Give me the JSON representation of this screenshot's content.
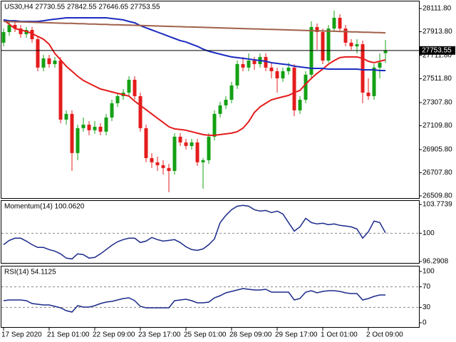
{
  "chart_data": [
    {
      "type": "candlestick",
      "title": "US30,H4  27730.55 27842.55 27646.65 27753.55",
      "categories": [
        "17 Sep 2020",
        null,
        null,
        null,
        null,
        null,
        null,
        null,
        "21 Sep 01:00",
        null,
        null,
        null,
        null,
        null,
        null,
        null,
        "22 Sep 09:00",
        null,
        null,
        null,
        null,
        null,
        null,
        null,
        "23 Sep 17:00",
        null,
        null,
        null,
        null,
        null,
        null,
        null,
        "25 Sep 01:00",
        null,
        null,
        null,
        null,
        null,
        null,
        null,
        "28 Sep 09:00",
        null,
        null,
        null,
        null,
        null,
        null,
        null,
        "29 Sep 17:00",
        null,
        null,
        null,
        null,
        null,
        null,
        null,
        "1 Oct 01:00",
        null,
        null,
        null,
        null,
        null,
        null,
        null,
        "2 Oct 09:00",
        null,
        null,
        null
      ],
      "open": [
        27820,
        27911,
        27972,
        27941,
        27893,
        27929,
        27850,
        27607,
        27686,
        27637,
        27667,
        27162,
        27211,
        26876,
        27089,
        27119,
        27071,
        27101,
        27059,
        27180,
        27302,
        27363,
        27393,
        27503,
        27363,
        27089,
        26833,
        26797,
        26772,
        26748,
        26723,
        27016,
        26967,
        26937,
        26967,
        26797,
        26815,
        27016,
        27211,
        27284,
        27332,
        27454,
        27637,
        27607,
        27667,
        27637,
        27698,
        27607,
        27576,
        27515,
        27576,
        27607,
        27241,
        27332,
        27546,
        27954,
        27911,
        27667,
        27941,
        28033,
        27941,
        27820,
        27789,
        27807,
        27393,
        27363,
        27607,
        27730.55
      ],
      "high": [
        27941,
        28002,
        28002,
        27972,
        27954,
        27954,
        27880,
        27716,
        27716,
        27698,
        27698,
        27241,
        27241,
        27119,
        27180,
        27150,
        27150,
        27131,
        27211,
        27332,
        27393,
        27424,
        27533,
        27533,
        27393,
        27119,
        26876,
        26845,
        26815,
        26784,
        27046,
        27046,
        26998,
        26998,
        26998,
        26833,
        27046,
        27241,
        27314,
        27363,
        27485,
        27667,
        27698,
        27728,
        27698,
        27728,
        27728,
        27649,
        27607,
        27607,
        27649,
        27637,
        27363,
        27576,
        28002,
        27984,
        27941,
        27972,
        28094,
        28063,
        27972,
        27850,
        27850,
        27838,
        27515,
        27637,
        27728,
        27842.55
      ],
      "low": [
        27789,
        27880,
        27911,
        27862,
        27862,
        27820,
        27576,
        27576,
        27607,
        27607,
        27131,
        27119,
        26723,
        26815,
        27059,
        27028,
        27040,
        27028,
        27028,
        27150,
        27271,
        27332,
        27363,
        27332,
        27059,
        26797,
        26748,
        26723,
        26693,
        26541,
        26693,
        26937,
        26906,
        26906,
        26766,
        26571,
        26784,
        26985,
        27180,
        27253,
        27302,
        27424,
        27576,
        27576,
        27588,
        27607,
        27576,
        27515,
        27393,
        27485,
        27546,
        27192,
        27211,
        27302,
        27515,
        27759,
        27637,
        27649,
        27911,
        27911,
        27789,
        27759,
        27728,
        27302,
        27332,
        27332,
        27515,
        27646.65
      ],
      "close": [
        27911,
        27972,
        27941,
        27893,
        27929,
        27850,
        27607,
        27686,
        27637,
        27667,
        27162,
        27211,
        26876,
        27089,
        27119,
        27071,
        27101,
        27059,
        27180,
        27302,
        27363,
        27393,
        27503,
        27363,
        27089,
        26833,
        26797,
        26772,
        26748,
        26723,
        27016,
        26967,
        26937,
        26967,
        26797,
        26815,
        27016,
        27211,
        27284,
        27332,
        27454,
        27637,
        27607,
        27667,
        27637,
        27698,
        27607,
        27576,
        27515,
        27576,
        27607,
        27241,
        27332,
        27546,
        27954,
        27911,
        27667,
        27941,
        28033,
        27941,
        27820,
        27789,
        27807,
        27393,
        27363,
        27607,
        27649,
        27753.55
      ],
      "up_color": "#14a014",
      "down_color": "#e41c1c",
      "overlays": [
        {
          "color": "#e41c1c",
          "values": [
            28015,
            27978,
            27941,
            27929,
            27917,
            27899,
            27874,
            27850,
            27807,
            27728,
            27673,
            27619,
            27576,
            27533,
            27497,
            27472,
            27448,
            27424,
            27412,
            27399,
            27387,
            27375,
            27363,
            27320,
            27284,
            27247,
            27211,
            27174,
            27138,
            27101,
            27083,
            27077,
            27071,
            27059,
            27046,
            27034,
            27028,
            27028,
            27034,
            27040,
            27046,
            27059,
            27089,
            27144,
            27223,
            27271,
            27302,
            27332,
            27345,
            27357,
            27369,
            27393,
            27412,
            27466,
            27515,
            27558,
            27594,
            27637,
            27667,
            27692,
            27698,
            27698,
            27698,
            27686,
            27661,
            27649,
            27661,
            27673
          ]
        },
        {
          "color": "#1c2cc0",
          "values": [
            28015,
            28008,
            28008,
            28002,
            28002,
            28002,
            28002,
            28008,
            28015,
            28021,
            28027,
            28033,
            28033,
            28033,
            28033,
            28033,
            28033,
            28033,
            28033,
            28027,
            28021,
            28015,
            28002,
            27990,
            27966,
            27947,
            27929,
            27911,
            27893,
            27874,
            27856,
            27838,
            27826,
            27807,
            27789,
            27765,
            27747,
            27734,
            27722,
            27710,
            27698,
            27692,
            27686,
            27680,
            27673,
            27667,
            27661,
            27649,
            27643,
            27637,
            27631,
            27619,
            27613,
            27607,
            27600,
            27600,
            27600,
            27594,
            27594,
            27594,
            27594,
            27594,
            27594,
            27588,
            27588,
            27588,
            27582,
            27582
          ]
        },
        {
          "color": "#a0604a",
          "values": [
            28002,
            28001,
            27999,
            27998,
            27996,
            27995,
            27993,
            27992,
            27990,
            27989,
            27987,
            27986,
            27985,
            27983,
            27982,
            27980,
            27979,
            27977,
            27976,
            27974,
            27973,
            27971,
            27970,
            27969,
            27967,
            27966,
            27964,
            27963,
            27961,
            27960,
            27958,
            27957,
            27955,
            27954,
            27953,
            27951,
            27950,
            27948,
            27947,
            27945,
            27944,
            27942,
            27941,
            27939,
            27938,
            27937,
            27935,
            27934,
            27932,
            27931,
            27929,
            27928,
            27926,
            27925,
            27923,
            27922,
            27921,
            27919,
            27918,
            27916,
            27915,
            27913,
            27912,
            27910,
            27909,
            27907,
            27906,
            27904
          ]
        }
      ],
      "ylim": [
        26491,
        28173
      ],
      "yticks": [
        {
          "value": 28111.8,
          "label": "28111.80"
        },
        {
          "value": 27913.8,
          "label": "27913.80"
        },
        {
          "value": 27711.8,
          "label": "27711.80"
        },
        {
          "value": 27511.8,
          "label": "27511.80"
        },
        {
          "value": 27307.8,
          "label": "27307.80"
        },
        {
          "value": 27109.8,
          "label": "27109.80"
        },
        {
          "value": 26905.8,
          "label": "26905.80"
        },
        {
          "value": 26707.8,
          "label": "26707.80"
        },
        {
          "value": 26509.8,
          "label": "26509.80"
        }
      ],
      "last_price": 27753.55
    },
    {
      "type": "line",
      "title": "Momentum(14) 100.0620",
      "series": [
        {
          "color": "#1a2a8a",
          "values": [
            98.5,
            99.06,
            99.35,
            99.35,
            98.97,
            98.5,
            98.13,
            98.13,
            97.85,
            97.66,
            97.29,
            96.73,
            96.63,
            97.29,
            97.19,
            96.73,
            96.82,
            97.29,
            97.85,
            98.41,
            98.88,
            99.16,
            99.35,
            99.35,
            98.78,
            98.97,
            99.44,
            99.16,
            98.97,
            99.06,
            99.16,
            98.78,
            98.22,
            97.85,
            97.75,
            97.94,
            98.5,
            99.25,
            101.4,
            102.34,
            103.09,
            103.55,
            103.65,
            103.55,
            103.09,
            102.9,
            102.99,
            102.71,
            102.9,
            102.53,
            101.4,
            100.28,
            100.84,
            101.96,
            101.4,
            101.22,
            101.31,
            101.12,
            101.22,
            101.03,
            100.94,
            100.84,
            100.56,
            99.35,
            100.19,
            101.59,
            101.4,
            100.06
          ]
        }
      ],
      "ylim": [
        96.2908,
        103.7739
      ],
      "yticks": [
        103.7739,
        100,
        96.2908
      ],
      "levels": [
        100
      ]
    },
    {
      "type": "line",
      "title": "RSI(14) 54.1125",
      "series": [
        {
          "color": "#1a2a8a",
          "values": [
            43.1,
            44.4,
            44.4,
            44.4,
            43.1,
            37.5,
            36.1,
            34.7,
            34.7,
            31.9,
            29.2,
            23.6,
            20.8,
            33.3,
            30.6,
            30.6,
            33.3,
            37.5,
            40.3,
            41.7,
            44.4,
            47.2,
            48.6,
            43.1,
            31.9,
            29.2,
            29.2,
            29.2,
            29.2,
            29.2,
            43.1,
            44.4,
            45.8,
            43.1,
            38.9,
            38.9,
            40.3,
            48.6,
            52.8,
            58.3,
            61.1,
            63.9,
            66.7,
            65.3,
            63.9,
            63.9,
            65.3,
            59.7,
            59.7,
            59.7,
            59.7,
            44.4,
            47.2,
            59.7,
            62.5,
            58.3,
            61.1,
            62.5,
            62.5,
            61.1,
            58.3,
            56.9,
            56.9,
            44.4,
            47.2,
            51.4,
            54.2,
            54.11
          ]
        }
      ],
      "ylim": [
        0,
        100
      ],
      "yticks": [
        100,
        70,
        30,
        0
      ],
      "levels": [
        70,
        30
      ]
    }
  ]
}
